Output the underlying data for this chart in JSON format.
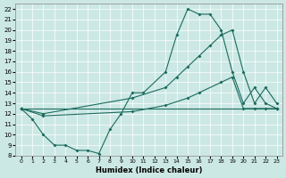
{
  "xlabel": "Humidex (Indice chaleur)",
  "xlim": [
    -0.5,
    23.5
  ],
  "ylim": [
    8,
    22.5
  ],
  "xticks": [
    0,
    1,
    2,
    3,
    4,
    5,
    6,
    7,
    8,
    9,
    10,
    11,
    12,
    13,
    14,
    15,
    16,
    17,
    18,
    19,
    20,
    21,
    22,
    23
  ],
  "yticks": [
    8,
    9,
    10,
    11,
    12,
    13,
    14,
    15,
    16,
    17,
    18,
    19,
    20,
    21,
    22
  ],
  "bg_color": "#cce8e4",
  "line_color": "#1a6b5e",
  "line1_x": [
    0,
    1,
    2,
    3,
    4,
    5,
    6,
    7,
    8,
    9,
    10,
    11,
    13,
    14,
    15,
    16,
    17,
    18,
    19,
    20,
    21,
    22,
    23
  ],
  "line1_y": [
    12.5,
    11.5,
    10.0,
    9.0,
    9.0,
    8.5,
    8.5,
    8.2,
    10.5,
    12.0,
    14.0,
    14.0,
    16.0,
    19.5,
    22.0,
    21.5,
    21.5,
    20.0,
    16.0,
    13.0,
    14.5,
    13.0,
    12.5
  ],
  "line2_x": [
    0,
    2,
    10,
    13,
    14,
    15,
    16,
    17,
    18,
    19,
    20,
    21,
    22,
    23
  ],
  "line2_y": [
    12.5,
    12.0,
    13.5,
    14.5,
    15.5,
    16.5,
    17.5,
    18.5,
    19.5,
    20.0,
    16.0,
    13.0,
    14.5,
    13.0
  ],
  "line3_x": [
    0,
    23
  ],
  "line3_y": [
    12.5,
    12.5
  ],
  "line4_x": [
    0,
    2,
    10,
    13,
    15,
    16,
    18,
    19,
    20,
    21,
    22,
    23
  ],
  "line4_y": [
    12.5,
    11.8,
    12.2,
    12.8,
    13.5,
    14.0,
    15.0,
    15.5,
    12.5,
    12.5,
    12.5,
    12.5
  ]
}
